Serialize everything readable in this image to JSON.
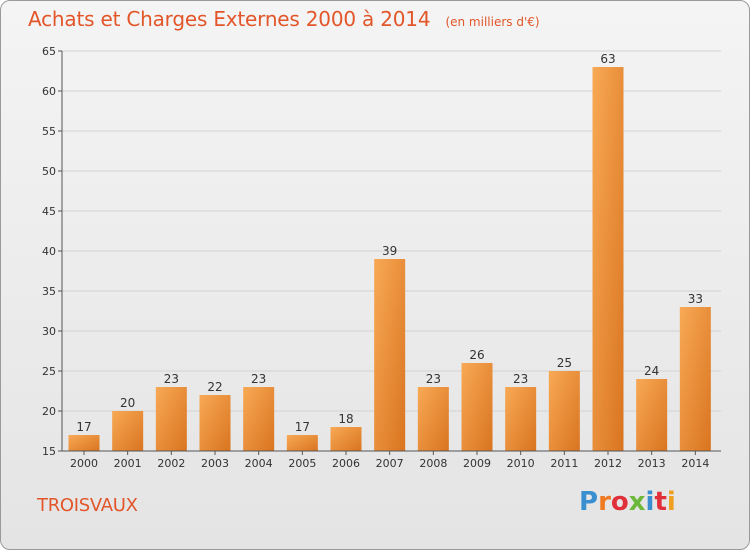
{
  "chart_data": {
    "type": "bar",
    "title": "Achats et Charges Externes 2000 à 2014",
    "unit": "(en milliers d'€)",
    "categories": [
      "2000",
      "2001",
      "2002",
      "2003",
      "2004",
      "2005",
      "2006",
      "2007",
      "2008",
      "2009",
      "2010",
      "2011",
      "2012",
      "2013",
      "2014"
    ],
    "values": [
      17,
      20,
      23,
      22,
      23,
      17,
      18,
      39,
      23,
      26,
      23,
      25,
      63,
      24,
      33
    ],
    "ylim": [
      15,
      65
    ],
    "yticks": [
      15,
      20,
      25,
      30,
      35,
      40,
      45,
      50,
      55,
      60,
      65
    ],
    "grid": true,
    "bar_color": "#f0902f",
    "grid_color": "#d2d2d2"
  },
  "location": "TROISVAUX",
  "brand": {
    "text": "Proxiti",
    "letter_colors": [
      "#3a8fd0",
      "#f07a23",
      "#e0303a",
      "#6cb83a",
      "#3a8fd0",
      "#e0303a",
      "#f0a020"
    ]
  }
}
